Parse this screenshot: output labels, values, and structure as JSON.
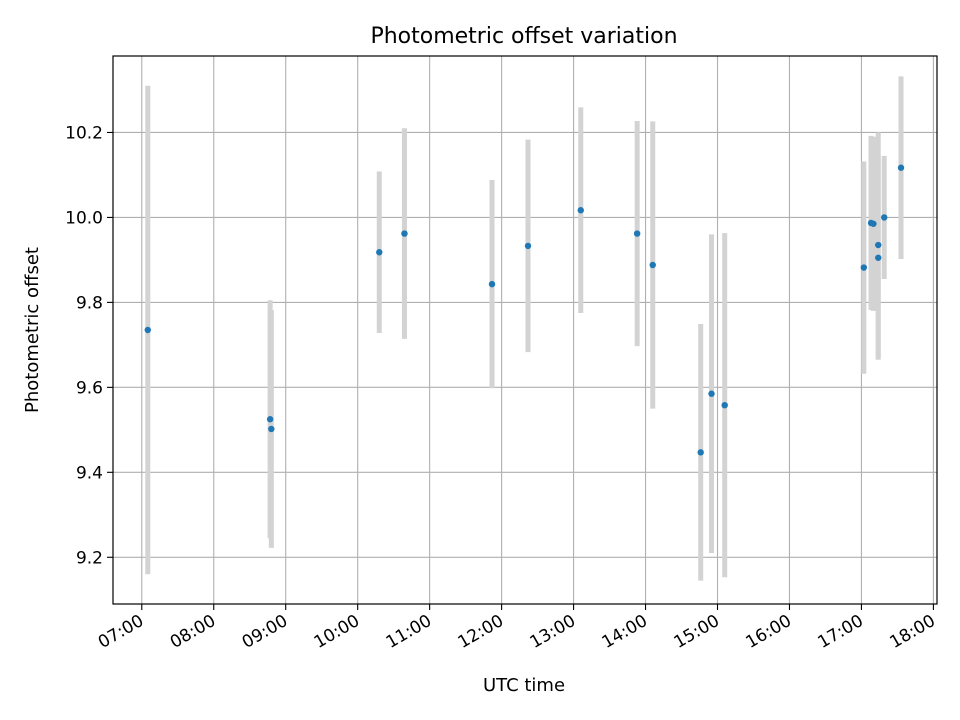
{
  "chart_data": {
    "type": "scatter",
    "title": "Photometric offset variation",
    "xlabel": "UTC time",
    "ylabel": "Photometric offset",
    "x_ticks": [
      "07:00",
      "08:00",
      "09:00",
      "10:00",
      "11:00",
      "12:00",
      "13:00",
      "14:00",
      "15:00",
      "16:00",
      "17:00",
      "18:00"
    ],
    "y_ticks": [
      "9.2",
      "9.4",
      "9.6",
      "9.8",
      "10.0",
      "10.2"
    ],
    "xlim": [
      "06:36",
      "18:03"
    ],
    "ylim": [
      9.09,
      10.38
    ],
    "grid": true,
    "points": [
      {
        "t": "07:05",
        "y": 9.735,
        "err": 0.575
      },
      {
        "t": "08:47",
        "y": 9.525,
        "err": 0.28
      },
      {
        "t": "08:48",
        "y": 9.502,
        "err": 0.28
      },
      {
        "t": "10:18",
        "y": 9.918,
        "err": 0.19
      },
      {
        "t": "10:39",
        "y": 9.962,
        "err": 0.248
      },
      {
        "t": "11:52",
        "y": 9.843,
        "err": 0.245
      },
      {
        "t": "12:22",
        "y": 9.933,
        "err": 0.25
      },
      {
        "t": "13:06",
        "y": 10.017,
        "err": 0.242
      },
      {
        "t": "13:53",
        "y": 9.962,
        "err": 0.265
      },
      {
        "t": "14:06",
        "y": 9.888,
        "err": 0.338
      },
      {
        "t": "14:46",
        "y": 9.447,
        "err": 0.302
      },
      {
        "t": "14:55",
        "y": 9.585,
        "err": 0.375
      },
      {
        "t": "15:06",
        "y": 9.558,
        "err": 0.405
      },
      {
        "t": "17:02",
        "y": 9.882,
        "err": 0.25
      },
      {
        "t": "17:08",
        "y": 9.987,
        "err": 0.205
      },
      {
        "t": "17:10",
        "y": 9.985,
        "err": 0.205
      },
      {
        "t": "17:14",
        "y": 9.905,
        "err": 0.24
      },
      {
        "t": "17:14",
        "y": 9.935,
        "err": 0.265
      },
      {
        "t": "17:19",
        "y": 10.0,
        "err": 0.145
      },
      {
        "t": "17:33",
        "y": 10.117,
        "err": 0.215
      }
    ],
    "colors": {
      "point": "#1f77b4",
      "errorbar": "#d3d3d3",
      "grid": "#b0b0b0",
      "axes": "#000000"
    }
  }
}
